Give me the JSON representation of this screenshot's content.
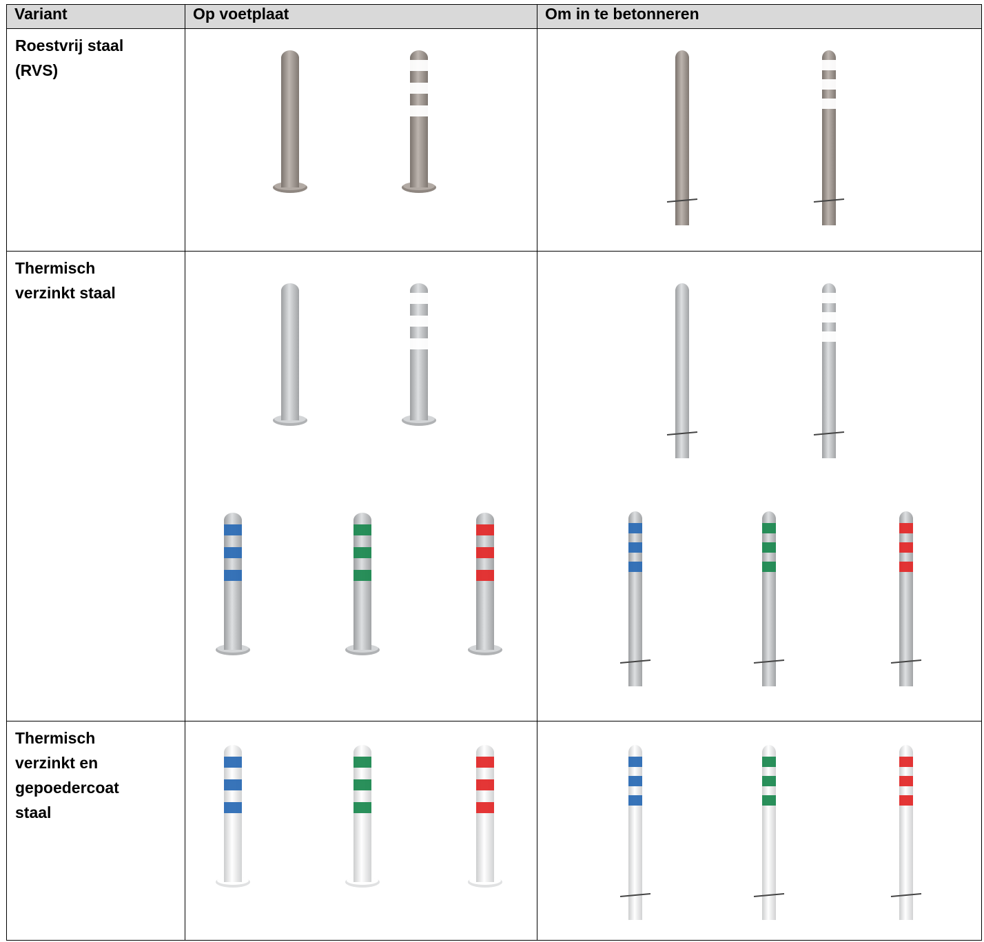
{
  "table": {
    "headers": [
      "Variant",
      "Op voetplaat",
      "Om in te betonneren"
    ],
    "rows": [
      {
        "variant": "Roestvrij staal\n(RVS)",
        "variant_lines": [
          "Roestvrij staal",
          "(RVS)"
        ],
        "voetplaat": [
          {
            "finish": "stainless",
            "bands": "none"
          },
          {
            "finish": "stainless",
            "bands": "white-reflective"
          }
        ],
        "betonneren": [
          {
            "finish": "stainless",
            "bands": "none"
          },
          {
            "finish": "stainless",
            "bands": "white-reflective"
          }
        ]
      },
      {
        "variant_lines": [
          "Thermisch",
          "verzinkt staal"
        ],
        "voetplaat": [
          {
            "finish": "galvanized",
            "bands": "none"
          },
          {
            "finish": "galvanized",
            "bands": "white-reflective"
          },
          {
            "finish": "galvanized",
            "bands": "blue"
          },
          {
            "finish": "galvanized",
            "bands": "green"
          },
          {
            "finish": "galvanized",
            "bands": "red"
          }
        ],
        "betonneren": [
          {
            "finish": "galvanized",
            "bands": "none"
          },
          {
            "finish": "galvanized",
            "bands": "white-reflective"
          },
          {
            "finish": "galvanized",
            "bands": "blue"
          },
          {
            "finish": "galvanized",
            "bands": "green"
          },
          {
            "finish": "galvanized",
            "bands": "red"
          }
        ]
      },
      {
        "variant_lines": [
          "Thermisch",
          "verzinkt en",
          "gepoedercoat",
          "staal"
        ],
        "voetplaat": [
          {
            "finish": "white-coated",
            "bands": "blue"
          },
          {
            "finish": "white-coated",
            "bands": "green"
          },
          {
            "finish": "white-coated",
            "bands": "red"
          }
        ],
        "betonneren": [
          {
            "finish": "white-coated",
            "bands": "blue"
          },
          {
            "finish": "white-coated",
            "bands": "green"
          },
          {
            "finish": "white-coated",
            "bands": "red"
          }
        ]
      }
    ]
  },
  "colors": {
    "stainless": "#a39b95",
    "galvanized": "#c4c6c8",
    "white-coated": "#f4f5f6",
    "blue": "#2d6db5",
    "green": "#1f8a52",
    "red": "#e32b2b",
    "white-band": "#ffffff"
  }
}
